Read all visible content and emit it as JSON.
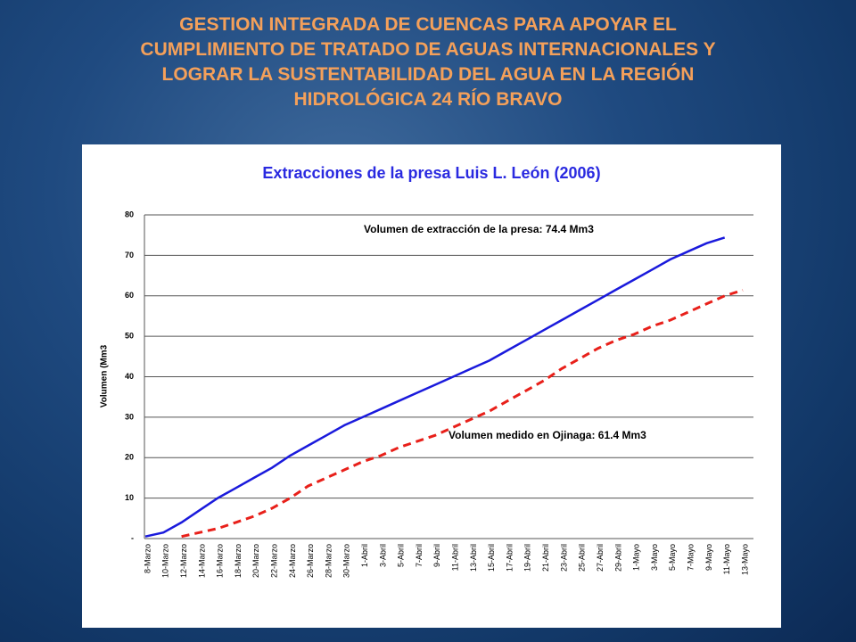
{
  "slide_title": [
    "GESTION INTEGRADA DE CUENCAS PARA APOYAR EL",
    "CUMPLIMIENTO DE TRATADO DE AGUAS INTERNACIONALES Y",
    "LOGRAR LA SUSTENTABILIDAD DEL AGUA EN LA REGIÓN",
    "HIDROLÓGICA 24 RÍO BRAVO"
  ],
  "chart_data": {
    "type": "line",
    "title": "Extracciones de la presa Luis L. León (2006)",
    "y_label": "Volumen (Mm3",
    "annotations": [
      "Volumen de extracción de la presa: 74.4 Mm3",
      "Volumen medido en Ojinaga: 61.4 Mm3"
    ],
    "categories": [
      "8-Marzo",
      "10-Marzo",
      "12-Marzo",
      "14-Marzo",
      "16-Marzo",
      "18-Marzo",
      "20-Marzo",
      "22-Marzo",
      "24-Marzo",
      "26-Marzo",
      "28-Marzo",
      "30-Marzo",
      "1-Abril",
      "3-Abril",
      "5-Abril",
      "7-Abril",
      "9-Abril",
      "11-Abril",
      "13-Abril",
      "15-Abril",
      "17-Abril",
      "19-Abril",
      "21-Abril",
      "23-Abril",
      "25-Abril",
      "27-Abril",
      "29-Abril",
      "1-Mayo",
      "3-Mayo",
      "5-Mayo",
      "7-Mayo",
      "9-Mayo",
      "11-Mayo",
      "13-Mayo"
    ],
    "series": [
      {
        "color": "#1a1adc",
        "dash": false,
        "values": [
          0.5,
          1.5,
          4,
          7,
          10,
          12.5,
          15,
          17.5,
          20.5,
          23,
          25.5,
          28,
          30,
          32,
          34,
          36,
          38,
          40,
          42,
          44,
          46.5,
          49,
          51.5,
          54,
          56.5,
          59,
          61.5,
          64,
          66.5,
          69,
          71,
          73,
          74.4,
          null
        ]
      },
      {
        "color": "#e8201a",
        "dash": true,
        "values": [
          null,
          null,
          0.5,
          1.5,
          2.5,
          4,
          5.5,
          7.5,
          10,
          13,
          15,
          17,
          19,
          20.5,
          22.5,
          24,
          25.5,
          27.5,
          29.5,
          31.5,
          34,
          36.5,
          39,
          42,
          44.5,
          47,
          49,
          50.5,
          52.5,
          54,
          56,
          58,
          60,
          61.4
        ]
      }
    ],
    "ylim": [
      0,
      80
    ],
    "yticks": [
      {
        "value": 0,
        "label": "-"
      },
      10,
      20,
      30,
      40,
      50,
      60,
      70,
      80
    ],
    "grid": true
  }
}
